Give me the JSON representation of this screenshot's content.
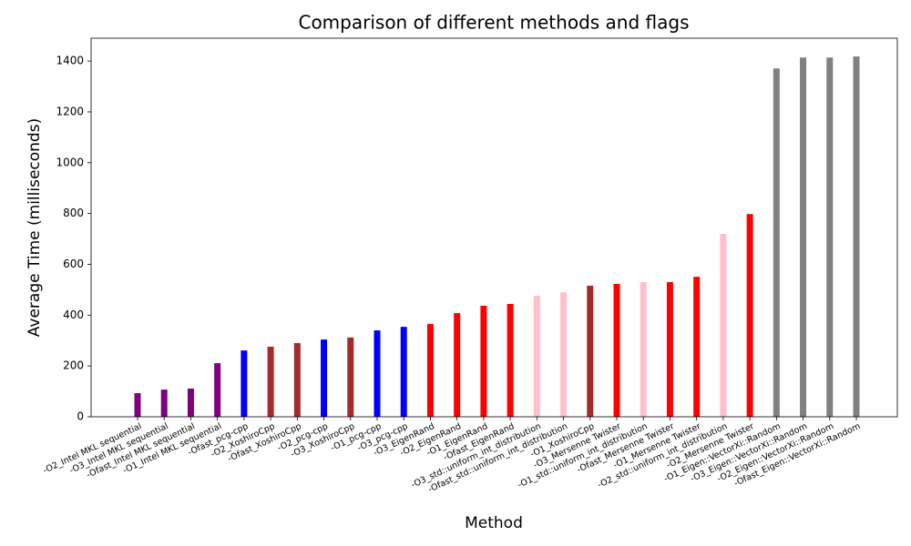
{
  "chart_data": {
    "type": "bar",
    "title": "Comparison of different methods and flags",
    "x_label": "Method",
    "y_label": "Average Time (milliseconds)",
    "categories": [
      "-O2_Intel MKL sequential",
      "-O3_Intel MKL sequential",
      "-Ofast_Intel MKL sequential",
      "-O1_Intel MKL sequential",
      "-Ofast_pcg-cpp",
      "-O2_XoshiroCpp",
      "-Ofast_XoshiroCpp",
      "-O2_pcg-cpp",
      "-O3_XoshiroCpp",
      "-O1_pcg-cpp",
      "-O3_pcg-cpp",
      "-O3_EigenRand",
      "-O2_EigenRand",
      "-O1_EigenRand",
      "-Ofast_EigenRand",
      "-O3_std::uniform_int_distribution",
      "-Ofast_std::uniform_int_distribution",
      "-O1_XoshiroCpp",
      "-O3_Mersenne Twister",
      "-O1_std::uniform_int_distribution",
      "-Ofast_Mersenne Twister",
      "-O1_Mersenne Twister",
      "-O2_std::uniform_int_distribution",
      "-O2_Mersenne Twister",
      "-O1_Eigen::VectorXi::Random",
      "-O3_Eigen::VectorXi::Random",
      "-O2_Eigen::VectorXi::Random",
      "-Ofast_Eigen::VectorXi::Random"
    ],
    "values": [
      93,
      107,
      111,
      211,
      261,
      276,
      290,
      304,
      312,
      340,
      354,
      365,
      408,
      437,
      444,
      476,
      490,
      516,
      523,
      530,
      530,
      551,
      720,
      798,
      1371,
      1414,
      1414,
      1418
    ],
    "colors": [
      "#800080",
      "#800080",
      "#800080",
      "#800080",
      "#0000ff",
      "#a52a2a",
      "#a52a2a",
      "#0000ff",
      "#a52a2a",
      "#0000ff",
      "#0000ff",
      "#ff0000",
      "#ff0000",
      "#ff0000",
      "#ff0000",
      "#ffc0cb",
      "#ffc0cb",
      "#a52a2a",
      "#ff0000",
      "#ffc0cb",
      "#ff0000",
      "#ff0000",
      "#ffc0cb",
      "#ff0000",
      "#808080",
      "#808080",
      "#808080",
      "#808080"
    ],
    "ylim": [
      0,
      1490
    ],
    "yticks": [
      0,
      200,
      400,
      600,
      800,
      1000,
      1200,
      1400
    ],
    "grid": false
  }
}
